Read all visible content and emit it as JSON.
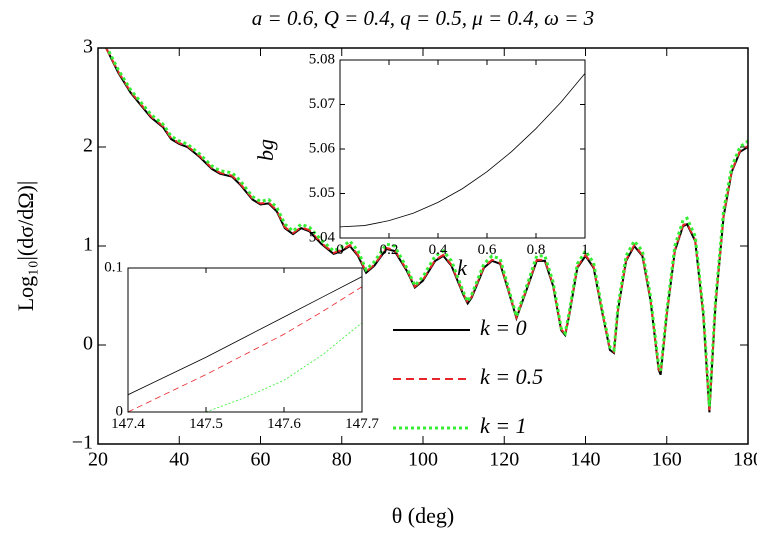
{
  "chart_data": [
    {
      "type": "line",
      "title": "a = 0.6, Q = 0.4, q = 0.5, μ = 0.4, ω = 3",
      "xlabel": "θ (deg)",
      "ylabel": "Log₁₀|(dσ/dΩ)|",
      "xlim": [
        20,
        180
      ],
      "ylim": [
        -1,
        3
      ],
      "xticks": [
        20,
        40,
        60,
        80,
        100,
        120,
        140,
        160,
        180
      ],
      "yticks": [
        {
          "value": -1,
          "label": "−1"
        },
        0,
        1,
        2,
        3
      ],
      "legend": "center right",
      "x": [
        22,
        25,
        28,
        30,
        33,
        36,
        38,
        40,
        42,
        45,
        48,
        50,
        53,
        55,
        58,
        60,
        62,
        64,
        66,
        68,
        70,
        72,
        75,
        78,
        80,
        82,
        84,
        86,
        88,
        91,
        93,
        96,
        98,
        100,
        103,
        105,
        107,
        110,
        111,
        112,
        115,
        117,
        119,
        121,
        123,
        125,
        128,
        130,
        132,
        134,
        135,
        136,
        138,
        140,
        142,
        144,
        146,
        147,
        148,
        150,
        152,
        154,
        156,
        158,
        158.5,
        160,
        162,
        164,
        165,
        167,
        169,
        170.5,
        172,
        174,
        176,
        178,
        180
      ],
      "series": [
        {
          "name": "k = 0",
          "color": "#000000",
          "style": "solid",
          "values": [
            3.0,
            2.75,
            2.55,
            2.45,
            2.3,
            2.2,
            2.08,
            2.03,
            2.0,
            1.9,
            1.78,
            1.73,
            1.7,
            1.62,
            1.47,
            1.42,
            1.43,
            1.35,
            1.18,
            1.12,
            1.18,
            1.15,
            1.02,
            0.92,
            0.95,
            1.0,
            0.9,
            0.73,
            0.8,
            0.97,
            0.95,
            0.75,
            0.58,
            0.65,
            0.85,
            0.9,
            0.8,
            0.5,
            0.42,
            0.48,
            0.78,
            0.85,
            0.82,
            0.55,
            0.27,
            0.5,
            0.85,
            0.85,
            0.6,
            0.15,
            0.1,
            0.3,
            0.78,
            0.9,
            0.78,
            0.35,
            -0.05,
            -0.08,
            0.35,
            0.85,
            1.0,
            0.9,
            0.45,
            -0.25,
            -0.3,
            0.3,
            0.95,
            1.2,
            1.22,
            1.05,
            0.3,
            -0.68,
            0.4,
            1.3,
            1.75,
            1.95,
            2.0
          ]
        },
        {
          "name": "k = 0.5",
          "color": "#e8262a",
          "style": "dashed",
          "values": [
            3.0,
            2.76,
            2.56,
            2.46,
            2.31,
            2.21,
            2.09,
            2.04,
            2.01,
            1.91,
            1.79,
            1.74,
            1.71,
            1.63,
            1.48,
            1.43,
            1.44,
            1.36,
            1.19,
            1.13,
            1.19,
            1.16,
            1.03,
            0.93,
            0.96,
            1.01,
            0.91,
            0.74,
            0.81,
            0.98,
            0.96,
            0.76,
            0.59,
            0.66,
            0.86,
            0.91,
            0.81,
            0.51,
            0.43,
            0.49,
            0.79,
            0.86,
            0.83,
            0.56,
            0.28,
            0.51,
            0.86,
            0.86,
            0.61,
            0.16,
            0.11,
            0.31,
            0.79,
            0.91,
            0.79,
            0.36,
            -0.04,
            -0.07,
            0.36,
            0.86,
            1.01,
            0.91,
            0.46,
            -0.24,
            -0.29,
            0.31,
            0.96,
            1.21,
            1.23,
            1.06,
            0.31,
            -0.66,
            0.41,
            1.31,
            1.76,
            1.96,
            2.01
          ]
        },
        {
          "name": "k = 1",
          "color": "#33ee33",
          "style": "dotted",
          "values": [
            3.02,
            2.78,
            2.58,
            2.48,
            2.33,
            2.23,
            2.11,
            2.06,
            2.03,
            1.93,
            1.81,
            1.76,
            1.74,
            1.66,
            1.5,
            1.45,
            1.47,
            1.39,
            1.22,
            1.15,
            1.22,
            1.19,
            1.06,
            0.95,
            0.99,
            1.05,
            0.95,
            0.76,
            0.84,
            1.02,
            1.0,
            0.78,
            0.6,
            0.69,
            0.9,
            0.95,
            0.85,
            0.53,
            0.44,
            0.51,
            0.82,
            0.9,
            0.87,
            0.58,
            0.29,
            0.53,
            0.9,
            0.9,
            0.64,
            0.17,
            0.12,
            0.33,
            0.82,
            0.95,
            0.83,
            0.38,
            -0.02,
            -0.05,
            0.39,
            0.9,
            1.05,
            0.95,
            0.49,
            -0.21,
            -0.26,
            0.34,
            1.0,
            1.26,
            1.28,
            1.1,
            0.34,
            -0.62,
            0.45,
            1.36,
            1.8,
            2.0,
            2.06
          ]
        }
      ]
    },
    {
      "type": "line",
      "xlabel": "k",
      "ylabel": "bg",
      "xlim": [
        0,
        1
      ],
      "ylim": [
        5.04,
        5.08
      ],
      "xticks": [
        0,
        0.2,
        0.4,
        0.6,
        0.8,
        1
      ],
      "yticks": [
        5.04,
        5.05,
        5.06,
        5.07,
        5.08
      ],
      "x": [
        0,
        0.1,
        0.2,
        0.3,
        0.4,
        0.5,
        0.6,
        0.7,
        0.8,
        0.9,
        1
      ],
      "series": [
        {
          "color": "#000000",
          "style": "thin",
          "values": [
            5.0425,
            5.0428,
            5.0439,
            5.0456,
            5.048,
            5.0511,
            5.0549,
            5.0594,
            5.0646,
            5.0704,
            5.077
          ]
        }
      ]
    },
    {
      "type": "line",
      "xlim": [
        147.4,
        147.7
      ],
      "ylim": [
        0,
        0.1
      ],
      "xticks": [
        147.4,
        147.5,
        147.6,
        147.7
      ],
      "yticks": [
        0,
        0.1
      ],
      "x": [
        147.4,
        147.45,
        147.5,
        147.55,
        147.6,
        147.65,
        147.7
      ],
      "series": [
        {
          "color": "#000000",
          "style": "thin",
          "values": [
            0.012,
            0.025,
            0.038,
            0.052,
            0.066,
            0.08,
            0.094
          ]
        },
        {
          "color": "#e8262a",
          "style": "thin-dashed",
          "values": [
            0.0,
            0.013,
            0.026,
            0.04,
            0.054,
            0.07,
            0.087
          ]
        },
        {
          "color": "#33ee33",
          "style": "thin-dotted",
          "values": [
            null,
            null,
            0.0,
            0.01,
            0.022,
            0.04,
            0.062
          ]
        }
      ]
    }
  ]
}
